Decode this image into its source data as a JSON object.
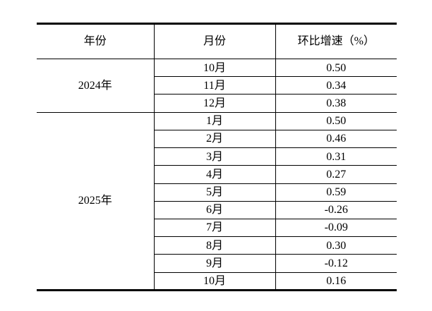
{
  "colors": {
    "border": "#000000",
    "text": "#000000",
    "background": "#ffffff"
  },
  "table": {
    "headers": {
      "year": "年份",
      "month": "月份",
      "growth": "环比增速（%）"
    },
    "groups": [
      {
        "year": "2024年",
        "rows": [
          {
            "month": "10月",
            "value": "0.50"
          },
          {
            "month": "11月",
            "value": "0.34"
          },
          {
            "month": "12月",
            "value": "0.38"
          }
        ]
      },
      {
        "year": "2025年",
        "rows": [
          {
            "month": "1月",
            "value": "0.50"
          },
          {
            "month": "2月",
            "value": "0.46"
          },
          {
            "month": "3月",
            "value": "0.31"
          },
          {
            "month": "4月",
            "value": "0.27"
          },
          {
            "month": "5月",
            "value": "0.59"
          },
          {
            "month": "6月",
            "value": "-0.26"
          },
          {
            "month": "7月",
            "value": "-0.09"
          },
          {
            "month": "8月",
            "value": "0.30"
          },
          {
            "month": "9月",
            "value": "-0.12"
          },
          {
            "month": "10月",
            "value": "0.16"
          }
        ]
      }
    ]
  },
  "chart_data": {
    "type": "table",
    "title": "环比增速（%）",
    "columns": [
      "年份",
      "月份",
      "环比增速（%）"
    ],
    "rows": [
      [
        "2024年",
        "10月",
        0.5
      ],
      [
        "2024年",
        "11月",
        0.34
      ],
      [
        "2024年",
        "12月",
        0.38
      ],
      [
        "2025年",
        "1月",
        0.5
      ],
      [
        "2025年",
        "2月",
        0.46
      ],
      [
        "2025年",
        "3月",
        0.31
      ],
      [
        "2025年",
        "4月",
        0.27
      ],
      [
        "2025年",
        "5月",
        0.59
      ],
      [
        "2025年",
        "6月",
        -0.26
      ],
      [
        "2025年",
        "7月",
        -0.09
      ],
      [
        "2025年",
        "8月",
        0.3
      ],
      [
        "2025年",
        "9月",
        -0.12
      ],
      [
        "2025年",
        "10月",
        0.16
      ]
    ]
  }
}
